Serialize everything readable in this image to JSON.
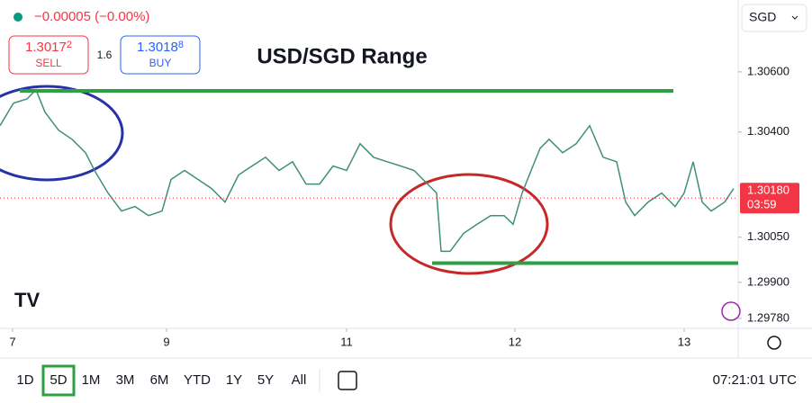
{
  "header": {
    "change": "−0.00005 (−0.00%)",
    "sell_price": "1.30172",
    "sell_label": "SELL",
    "spread": "1.6",
    "buy_price": "1.30188",
    "buy_label": "BUY",
    "currency": "SGD"
  },
  "chart_data": {
    "type": "line",
    "title": "USD/SGD Range",
    "x": [
      0,
      15,
      30,
      40,
      50,
      65,
      80,
      95,
      105,
      120,
      135,
      150,
      165,
      180,
      190,
      205,
      220,
      235,
      250,
      265,
      280,
      295,
      310,
      325,
      340,
      355,
      370,
      385,
      400,
      415,
      430,
      445,
      460,
      475,
      485,
      490,
      500,
      515,
      530,
      545,
      560,
      570,
      580,
      590,
      600,
      610,
      625,
      640,
      655,
      670,
      685,
      695,
      705,
      720,
      735,
      750,
      760,
      770,
      780,
      790,
      805,
      815
    ],
    "series": [
      {
        "color": "#3f8f7c",
        "values": [
          1.30421,
          1.30496,
          1.3051,
          1.3054,
          1.30466,
          1.30406,
          1.30376,
          1.30331,
          1.30272,
          1.30197,
          1.30137,
          1.30152,
          1.30122,
          1.30137,
          1.30242,
          1.30272,
          1.30242,
          1.30212,
          1.30167,
          1.30257,
          1.30287,
          1.30316,
          1.30272,
          1.30301,
          1.30227,
          1.30227,
          1.30287,
          1.30272,
          1.30361,
          1.30316,
          1.30301,
          1.30287,
          1.30272,
          1.30227,
          1.30197,
          1.30003,
          1.30003,
          1.30063,
          1.30093,
          1.30122,
          1.30122,
          1.30093,
          1.30197,
          1.30272,
          1.30346,
          1.30376,
          1.30331,
          1.30361,
          1.30421,
          1.30316,
          1.30301,
          1.30167,
          1.30122,
          1.30167,
          1.30197,
          1.30152,
          1.30197,
          1.30301,
          1.30167,
          1.30137,
          1.30167,
          1.30212
        ]
      }
    ],
    "xlim": [
      0,
      820
    ],
    "ylim": [
      1.29747,
      1.30839
    ],
    "xticks": [
      {
        "value": 14,
        "label": "7"
      },
      {
        "value": 185,
        "label": "9"
      },
      {
        "value": 385,
        "label": "11"
      },
      {
        "value": 572,
        "label": "12"
      },
      {
        "value": 760,
        "label": "13"
      }
    ],
    "yticks": [
      {
        "value": 1.306,
        "label": "1.30600"
      },
      {
        "value": 1.304,
        "label": "1.30400"
      },
      {
        "value": 1.3005,
        "label": "1.30050"
      },
      {
        "value": 1.299,
        "label": "1.29900"
      },
      {
        "value": 1.2978,
        "label": "1.29780"
      }
    ],
    "levels": [
      {
        "value": 1.30537,
        "xrange": [
          22,
          748
        ],
        "color": "#2ea043"
      },
      {
        "value": 1.29964,
        "xrange": [
          480,
          820
        ],
        "color": "#2ea043"
      }
    ],
    "last_price": {
      "value": 1.3018,
      "label": "1.30180",
      "countdown": "03:59",
      "color": "#f23645"
    }
  },
  "toolbar": {
    "ranges": [
      "1D",
      "5D",
      "1M",
      "3M",
      "6M",
      "YTD",
      "1Y",
      "5Y",
      "All"
    ],
    "active": 1,
    "time": "07:21:01 UTC"
  }
}
